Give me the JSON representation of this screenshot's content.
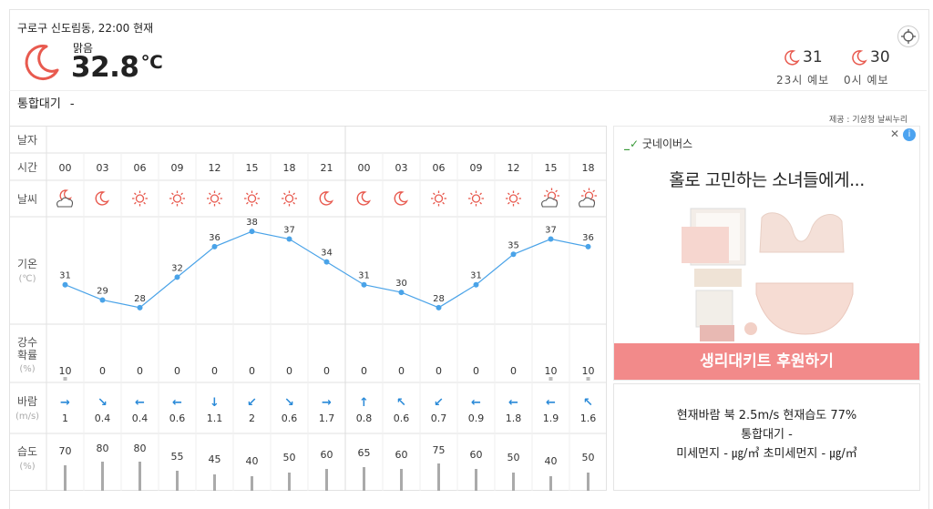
{
  "header": {
    "location": "구로구 신도림동, 22:00 현재",
    "condition": "맑음",
    "temperature": "32.8",
    "unit": "℃",
    "air_label": "통합대기",
    "air_value": "-",
    "forecast": [
      {
        "temp": "31",
        "label": "23시 예보",
        "icon": "moon-icon"
      },
      {
        "temp": "30",
        "label": "0시 예보",
        "icon": "moon-icon"
      }
    ]
  },
  "credit": "제공 : 기상청 날씨누리",
  "table": {
    "row_labels": {
      "date": "날자",
      "time": "시간",
      "weather": "날씨",
      "temp": "기온",
      "temp_unit": "(℃)",
      "rain": "강수\n확률",
      "rain_unit": "(%)",
      "wind": "바람",
      "wind_unit": "(m/s)",
      "humidity": "습도",
      "humidity_unit": "(%)"
    },
    "times": [
      "00",
      "03",
      "06",
      "09",
      "12",
      "15",
      "18",
      "21",
      "00",
      "03",
      "06",
      "09",
      "12",
      "15",
      "18"
    ],
    "weather_icons": [
      "moon-cloud-icon",
      "moon-icon",
      "sun-icon",
      "sun-icon",
      "sun-icon",
      "sun-icon",
      "sun-icon",
      "moon-icon",
      "moon-icon",
      "moon-icon",
      "sun-icon",
      "sun-icon",
      "sun-icon",
      "sun-cloud-icon",
      "sun-cloud-icon"
    ],
    "rain": [
      10,
      0,
      0,
      0,
      0,
      0,
      0,
      0,
      0,
      0,
      0,
      0,
      0,
      10,
      10
    ],
    "wind_speed": [
      "1",
      "0.4",
      "0.4",
      "0.6",
      "1.1",
      "2",
      "0.6",
      "1.7",
      "0.8",
      "0.6",
      "0.7",
      "0.9",
      "1.8",
      "1.9",
      "1.6"
    ],
    "wind_dir": [
      "→",
      "↘",
      "←",
      "←",
      "↓",
      "↙",
      "↘",
      "→",
      "↑",
      "↖",
      "↙",
      "←",
      "←",
      "←",
      "↖"
    ],
    "humidity": [
      70,
      80,
      80,
      55,
      45,
      40,
      50,
      60,
      65,
      60,
      75,
      60,
      50,
      40,
      50
    ]
  },
  "chart_data": {
    "type": "line",
    "x": [
      "00",
      "03",
      "06",
      "09",
      "12",
      "15",
      "18",
      "21",
      "00",
      "03",
      "06",
      "09",
      "12",
      "15",
      "18"
    ],
    "series": [
      {
        "values": [
          31,
          29,
          28,
          32,
          36,
          38,
          37,
          34,
          31,
          30,
          28,
          31,
          35,
          37,
          36
        ]
      }
    ],
    "color": "#4aa3e8"
  },
  "ad": {
    "brand": "굿네이버스",
    "headline": "홀로 고민하는 소녀들에게...",
    "cta": "생리대키트 후원하기",
    "info_icon": "info-icon",
    "close_icon": "close-icon"
  },
  "summary": {
    "line1": "현재바람 북 2.5m/s 현재습도 77%",
    "line2": "통합대기 -",
    "line3": "미세먼지 - ㎍/㎥ 초미세먼지 - ㎍/㎥"
  },
  "colors": {
    "accent": "#e85a4f",
    "wind": "#2a8ad8",
    "line": "#4aa3e8"
  }
}
